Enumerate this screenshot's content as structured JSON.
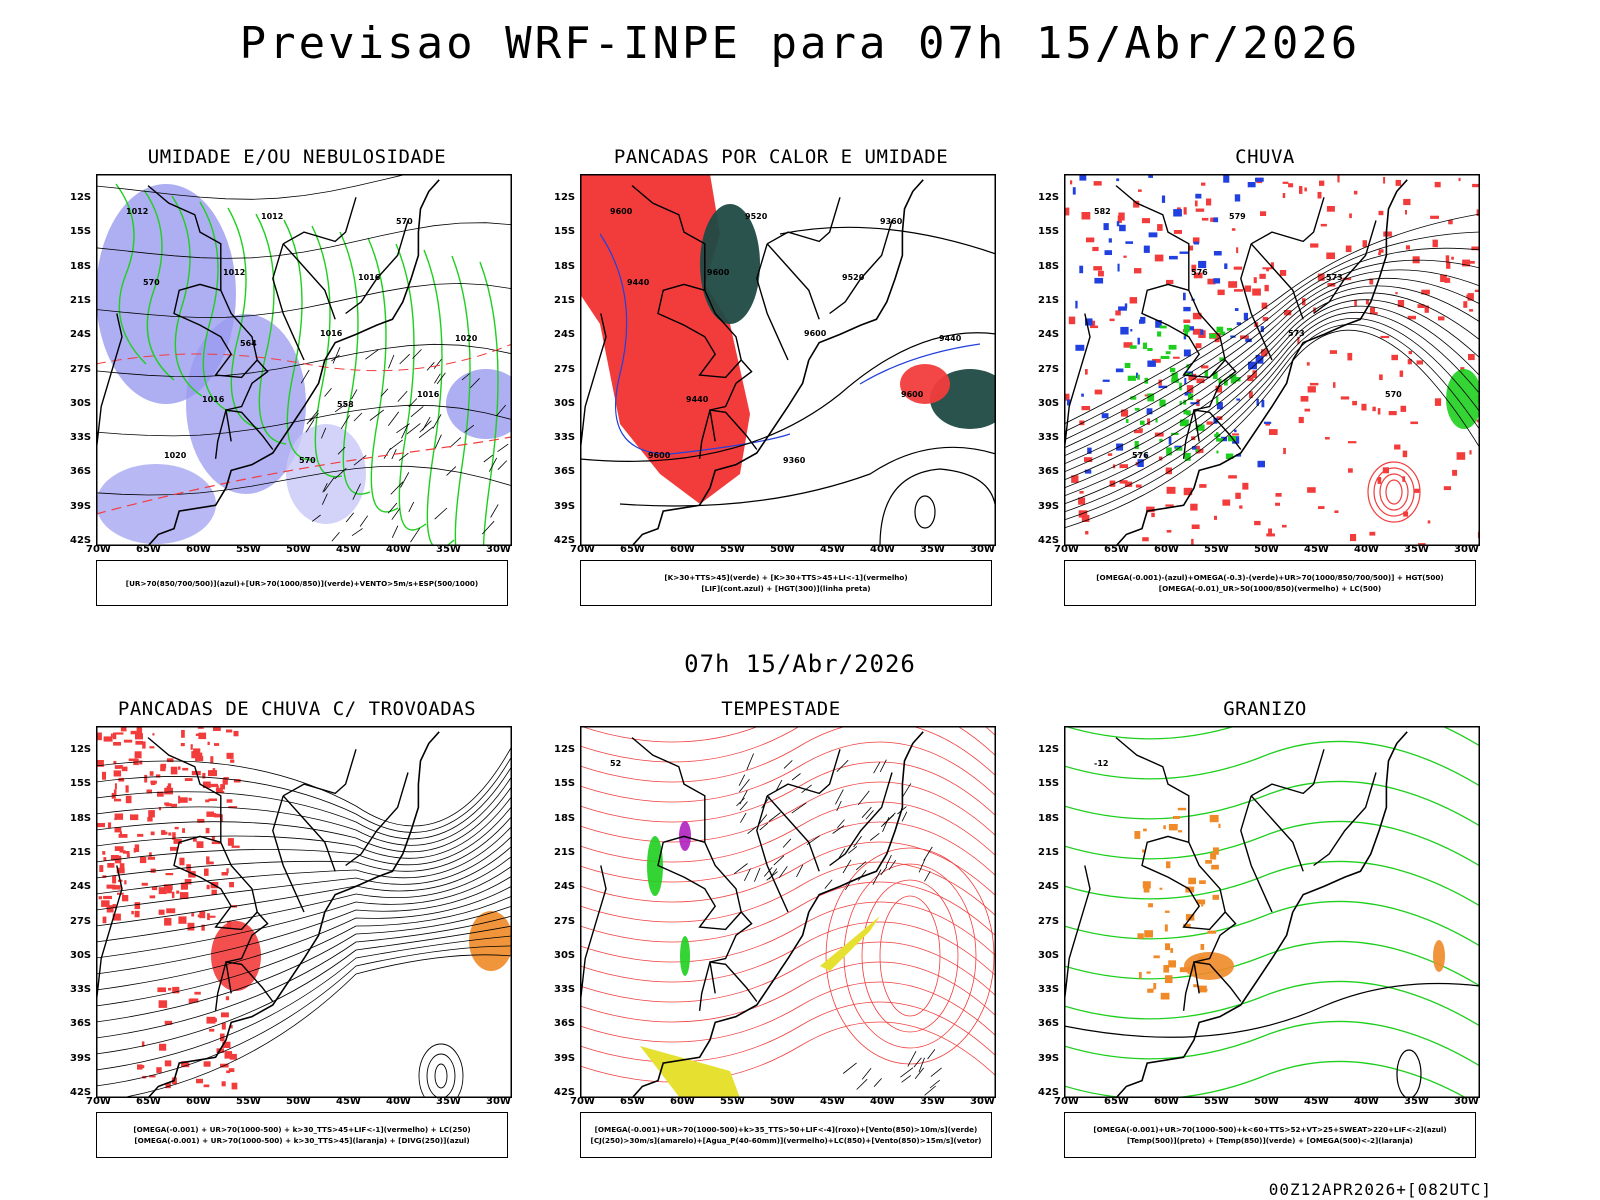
{
  "header": {
    "title": "Previsao WRF-INPE  para 07h 15/Abr/2026",
    "mid_time": "07h 15/Abr/2026",
    "run_info": "00Z12APR2026+[082UTC]"
  },
  "axes": {
    "lat_ticks": [
      "12S",
      "15S",
      "18S",
      "21S",
      "24S",
      "27S",
      "30S",
      "33S",
      "36S",
      "39S",
      "42S"
    ],
    "lon_ticks": [
      "70W",
      "65W",
      "60W",
      "55W",
      "50W",
      "45W",
      "40W",
      "35W",
      "30W"
    ]
  },
  "colors": {
    "red": "#f23c3c",
    "green": "#1ecf1e",
    "blue": "#2040e0",
    "lavender": "#9a9af0",
    "pale_lavender": "#c8c8f8",
    "dark_teal": "#1f4a44",
    "orange": "#f08a28",
    "yellow": "#e6e030",
    "purple": "#b020c0"
  },
  "panels": [
    {
      "id": "umidade",
      "title": "UMIDADE E/OU NEBULOSIDADE",
      "legend": [
        "[UR>70(850/700/500)](azul)+[UR>70(1000/850)](verde)+VENTO>5m/s+ESP(500/1000)"
      ],
      "contour_labels": [
        "1012",
        "1012",
        "1016",
        "1016",
        "1020",
        "1012",
        "1016",
        "1020",
        "1016",
        "570",
        "570",
        "570",
        "564",
        "558"
      ]
    },
    {
      "id": "pancadas_calor",
      "title": "PANCADAS POR CALOR E UMIDADE",
      "legend": [
        "[K>30+TTS>45](verde) + [K>30+TTS>45+LI<-1](vermelho)",
        "[LIF](cont.azul) + [HGT(300)](linha preta)"
      ],
      "contour_labels": [
        "9600",
        "9600",
        "9600",
        "9600",
        "9600",
        "9520",
        "9520",
        "9440",
        "9440",
        "9360",
        "9360",
        "9440"
      ]
    },
    {
      "id": "chuva",
      "title": "CHUVA",
      "legend": [
        "[OMEGA(-0.001)-(azul)+OMEGA(-0.3)-(verde)+UR>70(1000/850/700/500)] + HGT(500)",
        "[OMEGA(-0.01)_UR>50(1000/850)(vermelho) + LC(500)"
      ],
      "contour_labels": [
        "582",
        "576",
        "573",
        "570",
        "576",
        "579",
        "573"
      ]
    },
    {
      "id": "pancadas_trovoadas",
      "title": "PANCADAS DE CHUVA C/ TROVOADAS",
      "legend": [
        "[OMEGA(-0.001) + UR>70(1000-500) + k>30_TTS>45+LIF<-1](vermelho) + LC(250)",
        "[OMEGA(-0.001) + UR>70(1000-500) + k>30_TTS>45](laranja) + [DIVG(250)](azul)"
      ],
      "contour_labels": []
    },
    {
      "id": "tempestade",
      "title": "TEMPESTADE",
      "legend": [
        "[OMEGA(-0.001)+UR>70(1000-500)+k>35_TTS>50+LIF<-4](roxo)+[Vento(850)>10m/s](verde)",
        "[CJ(250)>30m/s](amarelo)+[Agua_P(40-60mm)](vermelho)+LC(850)+[Vento(850)>15m/s](vetor)"
      ],
      "contour_labels": [
        "52"
      ]
    },
    {
      "id": "granizo",
      "title": "GRANIZO",
      "legend": [
        "[OMEGA(-0.001)+UR>70(1000-500)+k<60+TTS>52+VT>25+SWEAT>220+LIF<-2](azul)",
        "[Temp(500)](preto) + [Temp(850)](verde) + [OMEGA(500)<-2](laranja)"
      ],
      "contour_labels": [
        "-12"
      ]
    }
  ]
}
